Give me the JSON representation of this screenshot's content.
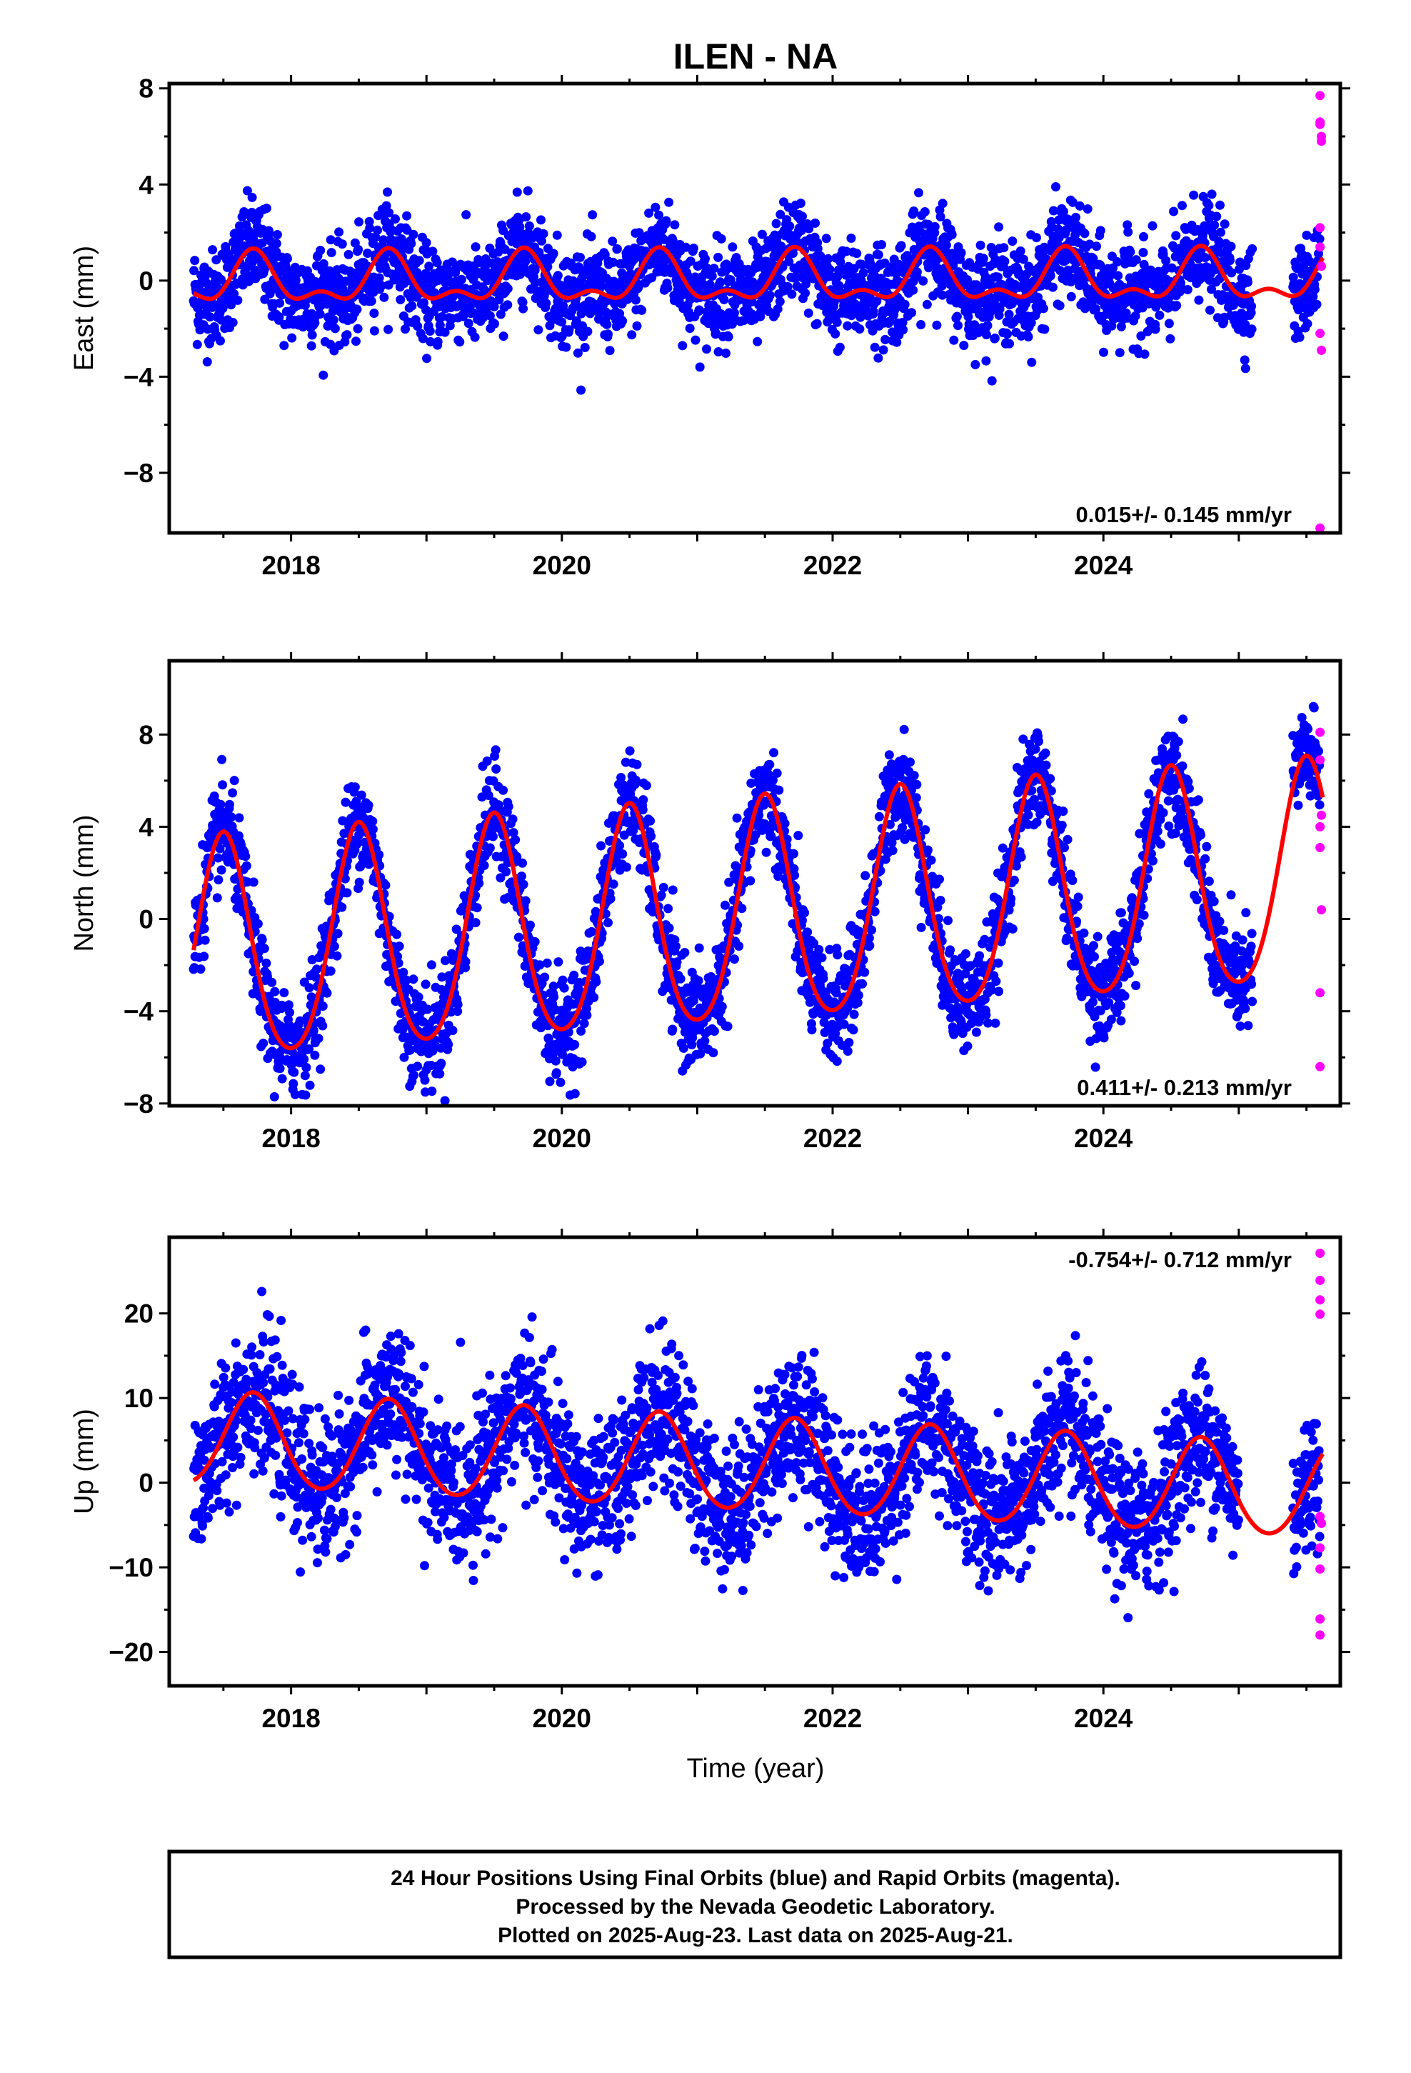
{
  "title": "ILEN - NA",
  "xlabel": "Time (year)",
  "footer": {
    "line1": "24 Hour Positions Using Final Orbits (blue) and Rapid Orbits (magenta).",
    "line2": "Processed by the Nevada Geodetic Laboratory.",
    "line3": "Plotted on 2025-Aug-23. Last data on 2025-Aug-21."
  },
  "colors": {
    "final": "#0000ff",
    "rapid": "#ff00ff",
    "model": "#ff0000"
  },
  "chart_data": [
    {
      "type": "scatter",
      "component": "East",
      "ylabel": "East (mm)",
      "xlim": [
        2017.1,
        2025.75
      ],
      "ylim": [
        -10.5,
        8.2
      ],
      "xticks": [
        2018,
        2020,
        2022,
        2024
      ],
      "xtick_labels": [
        "2018",
        "2020",
        "2022",
        "2024"
      ],
      "yticks": [
        -8,
        -4,
        0,
        4,
        8
      ],
      "ytick_labels": [
        "−8",
        "−4",
        "0",
        "4",
        "8"
      ],
      "rate": "0.015+/- 0.145 mm/yr",
      "rate_position": "bottom-right",
      "final_data": {
        "start": 2017.28,
        "end": 2025.1,
        "gap": [
          2025.1,
          2025.4
        ],
        "resume": 2025.4,
        "resume_end": 2025.6
      },
      "seasonal_model": {
        "start": 2017.28,
        "end": 2025.62,
        "mean": 0.0,
        "trend_mm_per_yr": 0.015,
        "annual_amp": 0.9,
        "annual_peak": 2017.72,
        "semiannual_amp": 0.5,
        "scatter_sd": 1.0
      },
      "rapid_points": [
        {
          "x": 2025.6,
          "y": 7.7
        },
        {
          "x": 2025.6,
          "y": 6.6
        },
        {
          "x": 2025.6,
          "y": 6.5
        },
        {
          "x": 2025.61,
          "y": 6.0
        },
        {
          "x": 2025.61,
          "y": 5.8
        },
        {
          "x": 2025.6,
          "y": 2.2
        },
        {
          "x": 2025.6,
          "y": 1.4
        },
        {
          "x": 2025.61,
          "y": 0.6
        },
        {
          "x": 2025.6,
          "y": -2.2
        },
        {
          "x": 2025.61,
          "y": -2.9
        },
        {
          "x": 2025.6,
          "y": -10.3
        }
      ]
    },
    {
      "type": "scatter",
      "component": "North",
      "ylabel": "North (mm)",
      "xlim": [
        2017.1,
        2025.75
      ],
      "ylim": [
        -8.1,
        11.2
      ],
      "xticks": [
        2018,
        2020,
        2022,
        2024
      ],
      "xtick_labels": [
        "2018",
        "2020",
        "2022",
        "2024"
      ],
      "yticks": [
        -8,
        -4,
        0,
        4,
        8
      ],
      "ytick_labels": [
        "−8",
        "−4",
        "0",
        "4",
        "8"
      ],
      "rate": "0.411+/- 0.213 mm/yr",
      "rate_position": "bottom-right",
      "final_data": {
        "start": 2017.28,
        "end": 2025.1,
        "gap": [
          2025.1,
          2025.4
        ],
        "resume": 2025.4,
        "resume_end": 2025.6
      },
      "seasonal_model": {
        "start": 2017.28,
        "end": 2025.62,
        "mean": 0.0,
        "trend_mm_per_yr": 0.411,
        "annual_amp": 4.8,
        "annual_peak": 2017.5,
        "semiannual_amp": 0.6,
        "scatter_sd": 1.1
      },
      "rapid_points": [
        {
          "x": 2025.6,
          "y": 8.1
        },
        {
          "x": 2025.6,
          "y": 6.9
        },
        {
          "x": 2025.61,
          "y": 4.5
        },
        {
          "x": 2025.6,
          "y": 4.0
        },
        {
          "x": 2025.6,
          "y": 3.1
        },
        {
          "x": 2025.61,
          "y": 0.4
        },
        {
          "x": 2025.6,
          "y": -3.2
        },
        {
          "x": 2025.6,
          "y": -6.4
        }
      ]
    },
    {
      "type": "scatter",
      "component": "Up",
      "ylabel": "Up (mm)",
      "xlim": [
        2017.1,
        2025.75
      ],
      "ylim": [
        -24,
        29
      ],
      "xticks": [
        2018,
        2020,
        2022,
        2024
      ],
      "xtick_labels": [
        "2018",
        "2020",
        "2022",
        "2024"
      ],
      "yticks": [
        -20,
        -10,
        0,
        10,
        20
      ],
      "ytick_labels": [
        "−20",
        "−10",
        "0",
        "10",
        "20"
      ],
      "rate": "-0.754+/- 0.712 mm/yr",
      "rate_position": "top-right",
      "final_data": {
        "start": 2017.28,
        "end": 2025.0,
        "gap": [
          2025.0,
          2025.4
        ],
        "resume": 2025.4,
        "resume_end": 2025.6
      },
      "seasonal_model": {
        "start": 2017.28,
        "end": 2025.62,
        "mean": 2.0,
        "trend_mm_per_yr": -0.754,
        "annual_amp": 5.5,
        "annual_peak": 2017.72,
        "semiannual_amp": 0.4,
        "scatter_sd": 4.2
      },
      "rapid_points": [
        {
          "x": 2025.6,
          "y": 27.1
        },
        {
          "x": 2025.6,
          "y": 23.9
        },
        {
          "x": 2025.6,
          "y": 21.6
        },
        {
          "x": 2025.6,
          "y": 19.9
        },
        {
          "x": 2025.6,
          "y": -4.0
        },
        {
          "x": 2025.61,
          "y": -4.8
        },
        {
          "x": 2025.6,
          "y": -7.7
        },
        {
          "x": 2025.6,
          "y": -10.2
        },
        {
          "x": 2025.6,
          "y": -16.1
        },
        {
          "x": 2025.6,
          "y": -18.0
        }
      ]
    }
  ]
}
